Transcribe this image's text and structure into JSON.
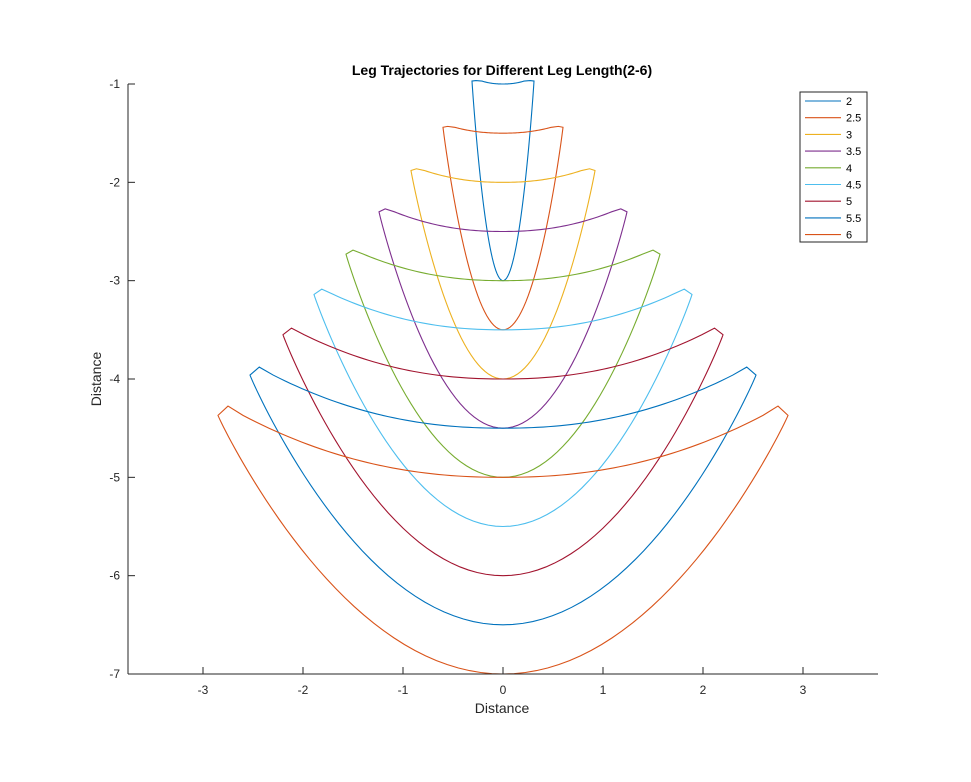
{
  "chart_data": {
    "type": "line",
    "title": "Leg Trajectories for Different Leg Length(2-6)",
    "xlabel": "Distance",
    "ylabel": "Distance",
    "xlim": [
      -3.75,
      3.75
    ],
    "ylim": [
      -7,
      -1
    ],
    "xticks": [
      -3,
      -2,
      -1,
      0,
      1,
      2,
      3
    ],
    "yticks": [
      -1,
      -2,
      -3,
      -4,
      -5,
      -6,
      -7
    ],
    "grid": false,
    "legend_position": "top-right",
    "series": [
      {
        "name": "2",
        "color": "#0072BD",
        "bottom_y": -3.0,
        "top_y_center": -1.0,
        "top_y_corner": -0.97,
        "half_width": 0.31
      },
      {
        "name": "2.5",
        "color": "#D95319",
        "bottom_y": -3.5,
        "top_y_center": -1.5,
        "top_y_corner": -1.44,
        "half_width": 0.6
      },
      {
        "name": "3",
        "color": "#EDB120",
        "bottom_y": -4.0,
        "top_y_center": -2.0,
        "top_y_corner": -1.88,
        "half_width": 0.92
      },
      {
        "name": "3.5",
        "color": "#7E2F8E",
        "bottom_y": -4.5,
        "top_y_center": -2.5,
        "top_y_corner": -2.3,
        "half_width": 1.24
      },
      {
        "name": "4",
        "color": "#77AC30",
        "bottom_y": -5.0,
        "top_y_center": -3.0,
        "top_y_corner": -2.73,
        "half_width": 1.57
      },
      {
        "name": "4.5",
        "color": "#4DBEEE",
        "bottom_y": -5.5,
        "top_y_center": -3.5,
        "top_y_corner": -3.14,
        "half_width": 1.89
      },
      {
        "name": "5",
        "color": "#A2142F",
        "bottom_y": -6.0,
        "top_y_center": -4.0,
        "top_y_corner": -3.55,
        "half_width": 2.2
      },
      {
        "name": "5.5",
        "color": "#0072BD",
        "bottom_y": -6.5,
        "top_y_center": -4.5,
        "top_y_corner": -3.96,
        "half_width": 2.53
      },
      {
        "name": "6",
        "color": "#D95319",
        "bottom_y": -7.0,
        "top_y_center": -5.0,
        "top_y_corner": -4.37,
        "half_width": 2.85
      }
    ]
  }
}
